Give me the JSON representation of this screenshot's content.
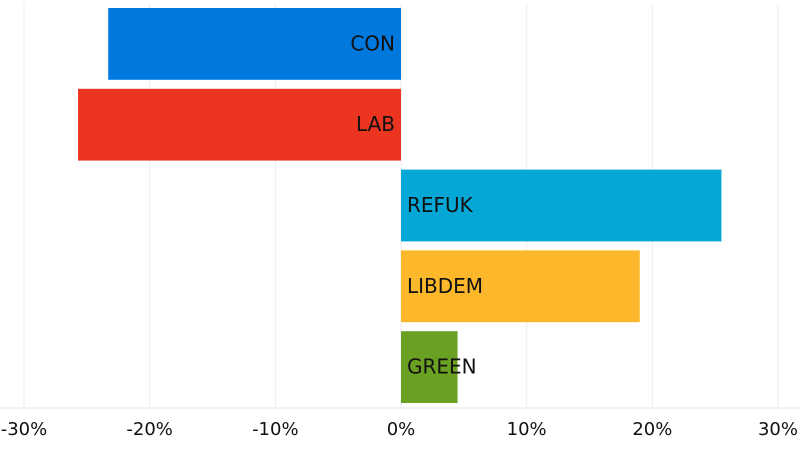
{
  "chart_data": {
    "type": "bar",
    "orientation": "horizontal",
    "categories": [
      "CON",
      "LAB",
      "REFUK",
      "LIBDEM",
      "GREEN"
    ],
    "values": [
      -23.3,
      -25.7,
      25.5,
      19.0,
      4.5
    ],
    "colors": [
      "#0079df",
      "#ec3520",
      "#04a7d6",
      "#fdb72b",
      "#6aa123"
    ],
    "xlim": [
      -30,
      30
    ],
    "xticks": [
      {
        "value": -30,
        "label": "-30%"
      },
      {
        "value": -20,
        "label": "-20%"
      },
      {
        "value": -10,
        "label": "-10%"
      },
      {
        "value": 0,
        "label": "0%"
      },
      {
        "value": 10,
        "label": "10%"
      },
      {
        "value": 20,
        "label": "20%"
      },
      {
        "value": 30,
        "label": "30%"
      }
    ],
    "grid": true
  }
}
